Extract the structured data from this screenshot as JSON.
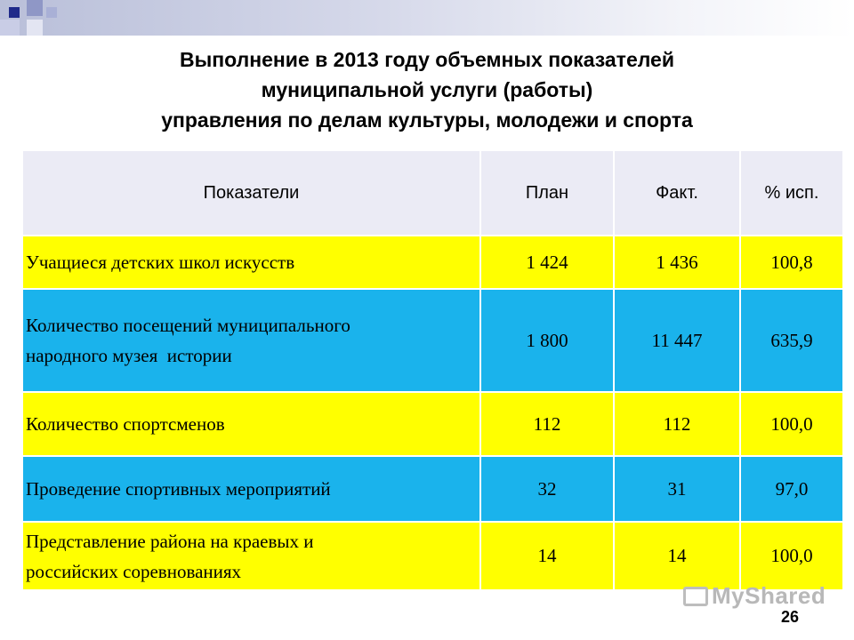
{
  "title": {
    "line1": "Выполнение в 2013 году объемных показателей",
    "line2": "муниципальной услуги (работы)",
    "line3": "управления по делам культуры, молодежи и спорта"
  },
  "table": {
    "headers": [
      "Показатели",
      "План",
      "Факт.",
      "% исп."
    ],
    "rows": [
      {
        "name_lines": [
          "Учащиеся детских школ искусств"
        ],
        "plan": "1 424",
        "fact": "1 436",
        "percent": "100,8",
        "color": "#ffff00"
      },
      {
        "name_lines": [
          "Количество посещений муниципального",
          "народного музея  истории"
        ],
        "plan": "1 800",
        "fact": "11 447",
        "percent": "635,9",
        "color": "#1ab3ec"
      },
      {
        "name_lines": [
          "Количество спортсменов"
        ],
        "plan": "112",
        "fact": "112",
        "percent": "100,0",
        "color": "#ffff00"
      },
      {
        "name_lines": [
          "Проведение спортивных мероприятий"
        ],
        "plan": "32",
        "fact": "31",
        "percent": "97,0",
        "color": "#1ab3ec"
      },
      {
        "name_lines": [
          "Представление района на краевых и",
          "российских соревнованиях"
        ],
        "plan": "14",
        "fact": "14",
        "percent": "100,0",
        "color": "#ffff00"
      }
    ]
  },
  "watermark": "MyShared",
  "page_number": "26"
}
